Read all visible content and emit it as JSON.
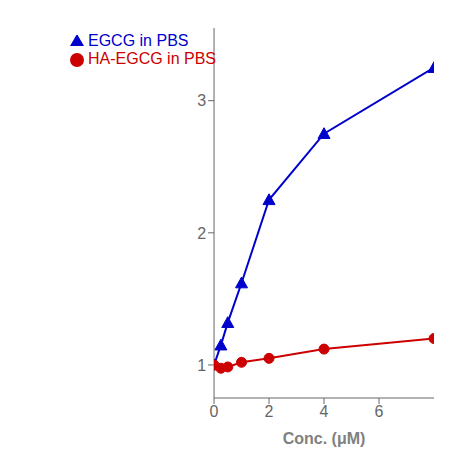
{
  "chart_data": {
    "type": "line",
    "x": [
      0,
      0.25,
      0.5,
      1.0,
      2.0,
      4.0,
      8.0
    ],
    "series": [
      {
        "name": "EGCG in PBS",
        "color": "#0000cc",
        "marker": "triangle",
        "values": [
          1.0,
          1.15,
          1.32,
          1.62,
          2.25,
          2.75,
          3.25
        ]
      },
      {
        "name": "HA-EGCG in PBS",
        "color": "#cc0000",
        "marker": "circle",
        "values": [
          1.0,
          0.975,
          0.985,
          1.02,
          1.05,
          1.12,
          1.2
        ]
      }
    ],
    "xlabel": "Conc. (μM)",
    "xlim": [
      0,
      8.0
    ],
    "ylim": [
      0.75,
      3.55
    ],
    "xticks": [
      0,
      2,
      4,
      6
    ],
    "yticks": [
      1,
      2,
      3
    ],
    "grid": false,
    "legend": "upper left"
  }
}
